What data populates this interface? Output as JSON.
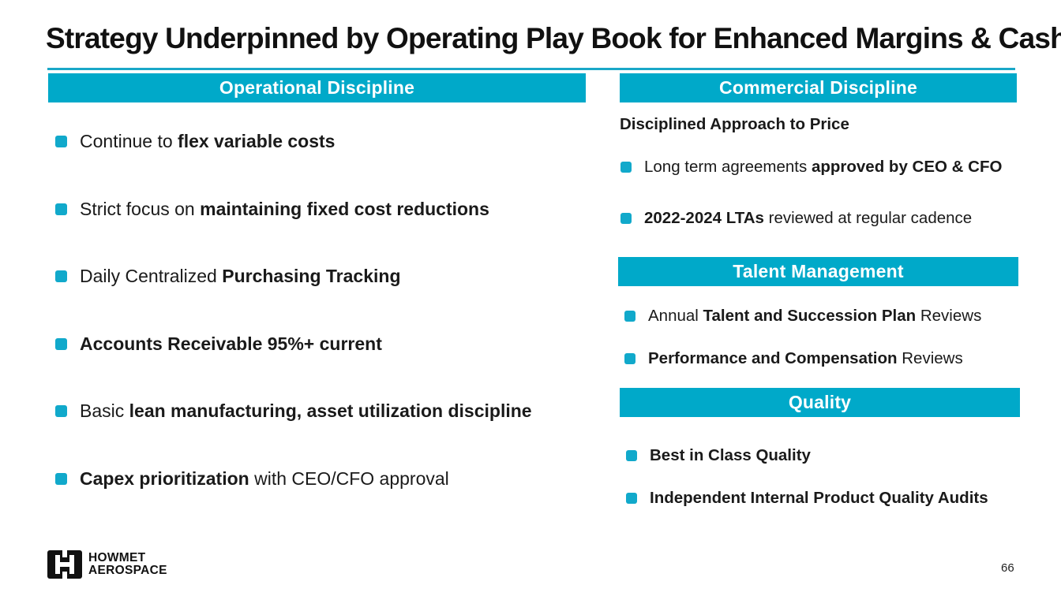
{
  "title": "Strategy Underpinned by Operating Play Book for Enhanced Margins & Cash",
  "colors": {
    "accent": "#00a9c9",
    "bullet": "#11a9cb",
    "text": "#1a1a1a"
  },
  "operational": {
    "header": "Operational Discipline",
    "items": [
      {
        "pre": "Continue to ",
        "bold": "flex variable costs",
        "post": ""
      },
      {
        "pre": "Strict focus on ",
        "bold": "maintaining fixed cost reductions",
        "post": ""
      },
      {
        "pre": "Daily Centralized ",
        "bold": "Purchasing Tracking",
        "post": ""
      },
      {
        "pre": "",
        "bold": "Accounts Receivable 95%+ current",
        "post": ""
      },
      {
        "pre": "Basic ",
        "bold": "lean manufacturing, asset utilization discipline",
        "post": ""
      },
      {
        "pre": "",
        "bold": "Capex prioritization",
        "post": " with CEO/CFO approval"
      }
    ]
  },
  "commercial": {
    "header": "Commercial Discipline",
    "subheading": "Disciplined Approach to Price",
    "items": [
      {
        "pre": "Long term agreements ",
        "bold": "approved by CEO & CFO",
        "post": ""
      },
      {
        "pre": "",
        "bold": "2022-2024 LTAs",
        "post": " reviewed at regular cadence"
      }
    ]
  },
  "talent": {
    "header": "Talent Management",
    "items": [
      {
        "pre": "Annual ",
        "bold": "Talent and Succession Plan",
        "post": " Reviews"
      },
      {
        "pre": "",
        "bold": "Performance and Compensation",
        "post": " Reviews"
      }
    ]
  },
  "quality": {
    "header": "Quality",
    "items": [
      {
        "pre": "",
        "bold": "Best in Class Quality",
        "post": ""
      },
      {
        "pre": "",
        "bold": "Independent Internal Product Quality Audits",
        "post": ""
      }
    ]
  },
  "logo": {
    "line1": "HOWMET",
    "line2": "AEROSPACE",
    "icon": "howmet-logo-icon"
  },
  "page_number": "66"
}
